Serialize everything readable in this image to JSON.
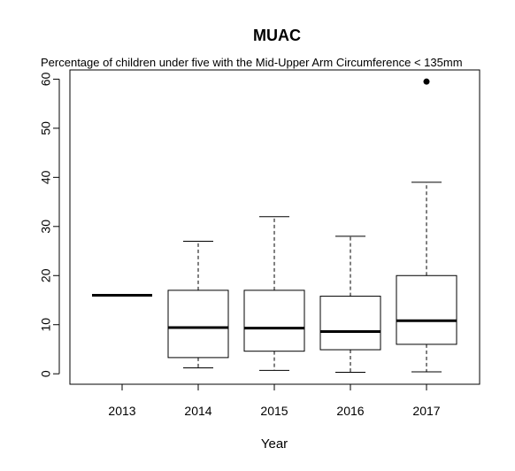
{
  "chart_data": {
    "type": "box",
    "title": "MUAC",
    "subtitle": "Percentage of children under five with the Mid-Upper Arm Circumference  < 135mm",
    "xlabel": "Year",
    "ylabel": "",
    "ylim": [
      -2,
      62
    ],
    "yticks": [
      0,
      10,
      20,
      30,
      40,
      50,
      60
    ],
    "categories": [
      "2013",
      "2014",
      "2015",
      "2016",
      "2017"
    ],
    "boxes": [
      {
        "category": "2013",
        "whisker_low": 16,
        "q1": 16,
        "median": 16,
        "q3": 16,
        "whisker_high": 16,
        "outliers": []
      },
      {
        "category": "2014",
        "whisker_low": 1.2,
        "q1": 3.3,
        "median": 9.4,
        "q3": 17.0,
        "whisker_high": 27.0,
        "outliers": []
      },
      {
        "category": "2015",
        "whisker_low": 0.7,
        "q1": 4.6,
        "median": 9.3,
        "q3": 17.0,
        "whisker_high": 32.0,
        "outliers": []
      },
      {
        "category": "2016",
        "whisker_low": 0.3,
        "q1": 4.9,
        "median": 8.6,
        "q3": 15.8,
        "whisker_high": 28.0,
        "outliers": []
      },
      {
        "category": "2017",
        "whisker_low": 0.4,
        "q1": 6.0,
        "median": 10.8,
        "q3": 20.0,
        "whisker_high": 39.0,
        "outliers": [
          59.5
        ]
      }
    ],
    "grid": false,
    "legend": "none"
  }
}
